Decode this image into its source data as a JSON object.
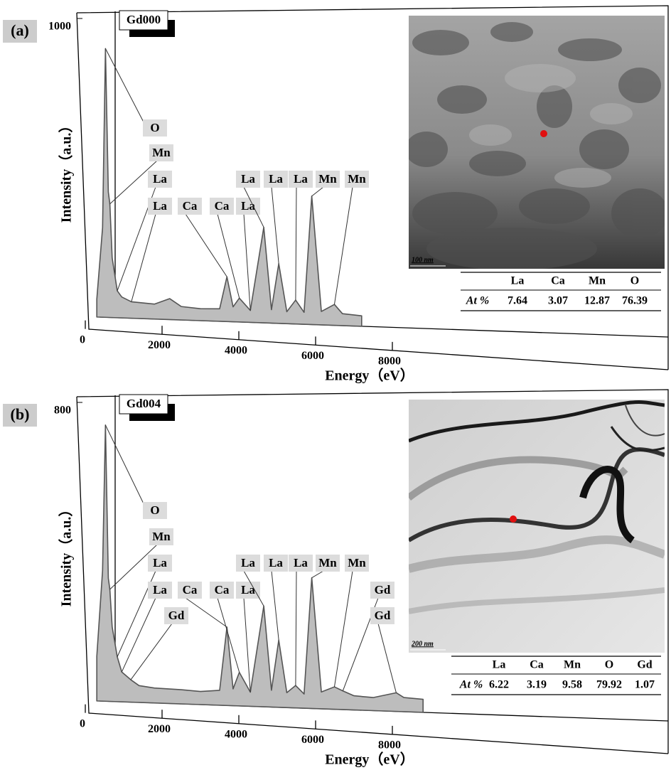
{
  "chart_data": [
    {
      "type": "line",
      "panel_label": "(a)",
      "sample": "Gd000",
      "x_label": "Energy（eV）",
      "y_label": "Intensity（a.u.）",
      "xlim": [
        0,
        15000
      ],
      "xticks": [
        0,
        2000,
        4000,
        6000,
        8000
      ],
      "ylim": [
        0,
        1000
      ],
      "yticks": [
        1000
      ],
      "color": "#555555",
      "x": [
        300,
        450,
        525,
        600,
        640,
        700,
        833,
        950,
        1200,
        1800,
        2200,
        2500,
        3000,
        3500,
        3690,
        3850,
        4013,
        4300,
        4650,
        4850,
        5040,
        5250,
        5480,
        5700,
        5900,
        6150,
        6490,
        6700,
        7200
      ],
      "values": [
        60,
        300,
        900,
        420,
        380,
        200,
        90,
        70,
        55,
        50,
        70,
        45,
        40,
        42,
        150,
        50,
        80,
        40,
        320,
        45,
        200,
        40,
        80,
        40,
        430,
        45,
        70,
        40,
        35
      ],
      "peak_labels": [
        {
          "text": "O",
          "x": 525
        },
        {
          "text": "Mn",
          "x": 640
        },
        {
          "text": "La",
          "x": 833
        },
        {
          "text": "La",
          "x": 1200
        },
        {
          "text": "Ca",
          "x": 3690
        },
        {
          "text": "Ca",
          "x": 4013
        },
        {
          "text": "La",
          "x": 4300
        },
        {
          "text": "La",
          "x": 4650
        },
        {
          "text": "La",
          "x": 5040
        },
        {
          "text": "La",
          "x": 5480
        },
        {
          "text": "Mn",
          "x": 5900
        },
        {
          "text": "Mn",
          "x": 6490
        }
      ],
      "inset": {
        "scale_bar": "100 nm"
      },
      "table": {
        "columns": [
          "La",
          "Ca",
          "Mn",
          "O"
        ],
        "row_label": "At %",
        "values": [
          7.64,
          3.07,
          12.87,
          76.39
        ]
      }
    },
    {
      "type": "line",
      "panel_label": "(b)",
      "sample": "Gd004",
      "x_label": "Energy（eV）",
      "y_label": "Intensity（a.u.）",
      "xlim": [
        0,
        15000
      ],
      "xticks": [
        0,
        2000,
        4000,
        6000,
        8000
      ],
      "ylim": [
        0,
        800
      ],
      "yticks": [
        800
      ],
      "color": "#555555",
      "x": [
        300,
        450,
        525,
        600,
        640,
        700,
        833,
        950,
        1185,
        1400,
        1800,
        2500,
        3000,
        3500,
        3690,
        3850,
        4013,
        4300,
        4650,
        4850,
        5040,
        5250,
        5480,
        5700,
        5900,
        6150,
        6490,
        6710,
        7000,
        7500,
        8100,
        8300,
        8800
      ],
      "values": [
        120,
        350,
        740,
        330,
        300,
        200,
        120,
        80,
        60,
        45,
        40,
        38,
        35,
        40,
        210,
        45,
        90,
        38,
        270,
        45,
        180,
        40,
        60,
        38,
        350,
        45,
        60,
        50,
        38,
        35,
        50,
        38,
        35
      ],
      "peak_labels": [
        {
          "text": "O",
          "x": 525
        },
        {
          "text": "Mn",
          "x": 640
        },
        {
          "text": "La",
          "x": 833
        },
        {
          "text": "La",
          "x": 950
        },
        {
          "text": "Gd",
          "x": 1185
        },
        {
          "text": "Ca",
          "x": 3690
        },
        {
          "text": "Ca",
          "x": 4013
        },
        {
          "text": "La",
          "x": 4300
        },
        {
          "text": "La",
          "x": 4650
        },
        {
          "text": "La",
          "x": 5040
        },
        {
          "text": "La",
          "x": 5480
        },
        {
          "text": "Mn",
          "x": 5900
        },
        {
          "text": "Mn",
          "x": 6490
        },
        {
          "text": "Gd",
          "x": 6710
        },
        {
          "text": "Gd",
          "x": 8100
        }
      ],
      "inset": {
        "scale_bar": "200 nm"
      },
      "table": {
        "columns": [
          "La",
          "Ca",
          "Mn",
          "O",
          "Gd"
        ],
        "row_label": "At %",
        "values": [
          6.22,
          3.19,
          9.58,
          79.92,
          1.07
        ]
      }
    }
  ]
}
